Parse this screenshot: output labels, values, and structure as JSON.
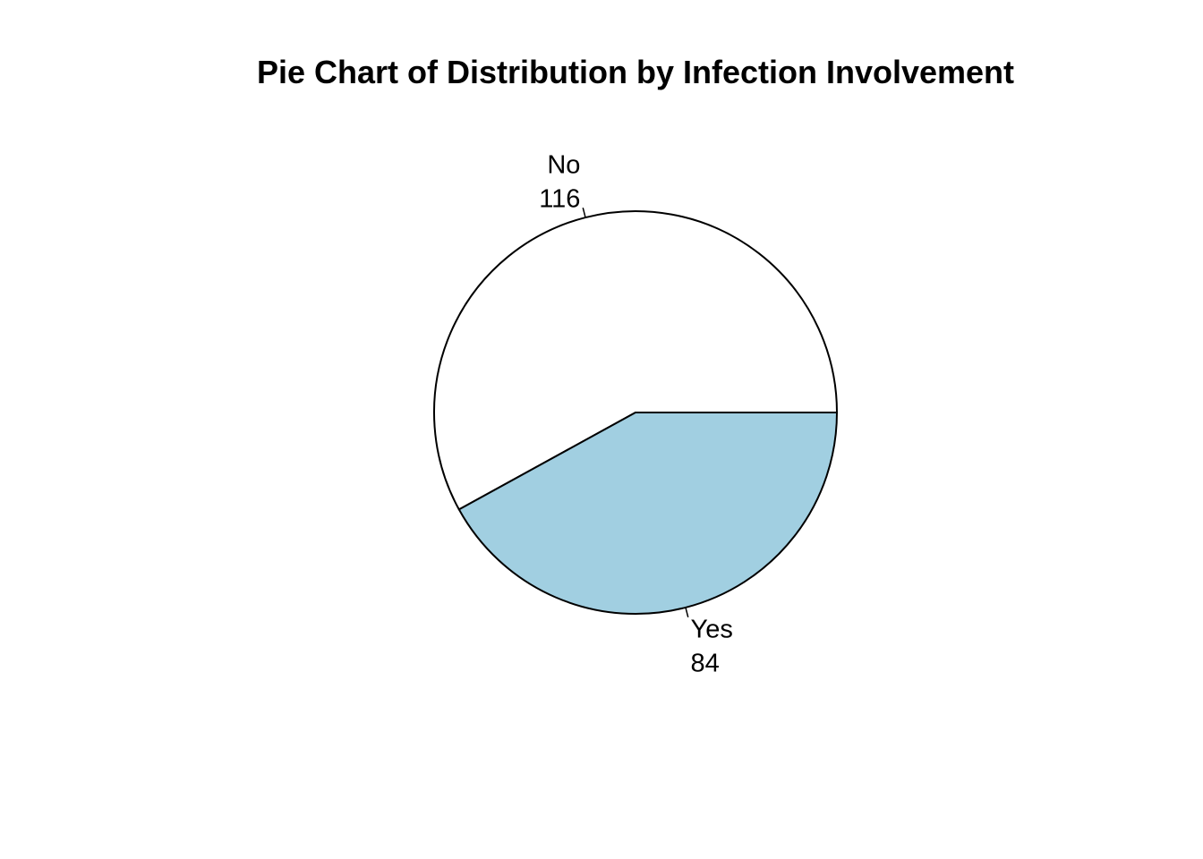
{
  "chart_data": {
    "type": "pie",
    "title": "Pie Chart of Distribution by Infection Involvement",
    "slices": [
      {
        "label": "No",
        "value": 116,
        "value_label": "116",
        "color": "#ffffff"
      },
      {
        "label": "Yes",
        "value": 84,
        "value_label": "84",
        "color": "#a1cfe1"
      }
    ],
    "start_angle_deg": 0,
    "direction": "counterclockwise",
    "edge_color": "#000000"
  }
}
